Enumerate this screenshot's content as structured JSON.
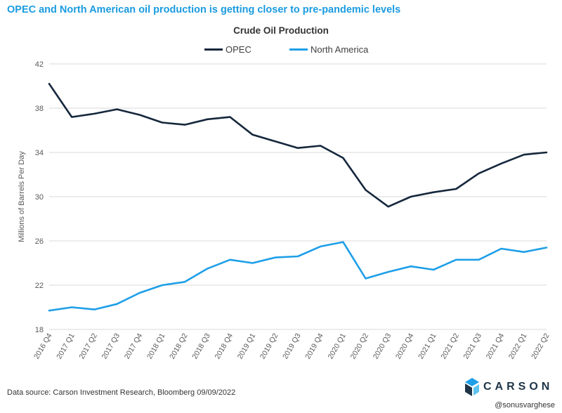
{
  "headline": "OPEC and North American oil production is getting closer to pre-pandemic levels",
  "source": "Data source: Carson Investment Research, Bloomberg   09/09/2022",
  "handle": "@sonusvarghese",
  "logo_text": "CARSON",
  "colors": {
    "opec": "#15273c",
    "north_america": "#1e9fe8",
    "grid": "#d9d9d9",
    "axis_text": "#595959"
  },
  "chart_data": {
    "type": "line",
    "title": "Crude Oil Production",
    "xlabel": "",
    "ylabel": "Millions of Barrels Per Day",
    "ylim": [
      18,
      42
    ],
    "yticks": [
      18,
      22,
      26,
      30,
      34,
      38,
      42
    ],
    "grid": true,
    "legend_position": "top",
    "categories": [
      "2016 Q4",
      "2017 Q1",
      "2017 Q2",
      "2017 Q3",
      "2017 Q4",
      "2018 Q1",
      "2018 Q2",
      "2018 Q3",
      "2018 Q4",
      "2019 Q1",
      "2019 Q2",
      "2019 Q3",
      "2019 Q4",
      "2020 Q1",
      "2020 Q2",
      "2020 Q3",
      "2020 Q4",
      "2021 Q1",
      "2021 Q2",
      "2021 Q3",
      "2021 Q4",
      "2022 Q1",
      "2022 Q2"
    ],
    "series": [
      {
        "name": "OPEC",
        "color": "#15273c",
        "values": [
          40.2,
          37.2,
          37.5,
          37.9,
          37.4,
          36.7,
          36.5,
          37.0,
          37.2,
          35.6,
          35.0,
          34.4,
          34.6,
          33.5,
          30.6,
          29.1,
          30.0,
          30.4,
          30.7,
          32.1,
          33.0,
          33.8,
          34.0
        ]
      },
      {
        "name": "North America",
        "color": "#1e9fe8",
        "values": [
          19.7,
          20.0,
          19.8,
          20.3,
          21.3,
          22.0,
          22.3,
          23.5,
          24.3,
          24.0,
          24.5,
          24.6,
          25.5,
          25.9,
          22.6,
          23.2,
          23.7,
          23.4,
          24.3,
          24.3,
          25.3,
          25.0,
          25.4
        ]
      }
    ]
  }
}
